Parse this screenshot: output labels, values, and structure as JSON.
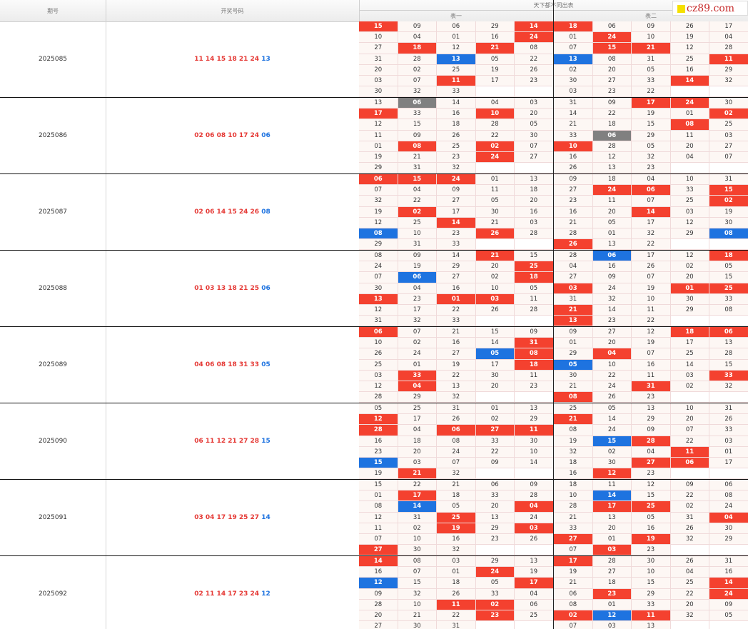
{
  "header": {
    "col_issue": "期号",
    "col_numbers": "开奖号码",
    "col_main": "天下都不同出表",
    "table1": "表一",
    "table2": "表二"
  },
  "logo": {
    "text": "cz89.com",
    "square_color": "#f5e000",
    "text_color": "#c62828"
  },
  "colors": {
    "red": "#f4412f",
    "blue": "#1e73e0",
    "gray": "#808080",
    "cell_bg": "#fdf7f4",
    "number_red": "#e53935",
    "number_blue": "#1e73e0"
  },
  "rows": [
    {
      "issue": "2025085",
      "red": "11 14 15 18 21 24",
      "blue": "13",
      "t1": [
        [
          "15r",
          "09",
          "06",
          "29",
          "14r"
        ],
        [
          "10",
          "04",
          "01",
          "16",
          "24r"
        ],
        [
          "27",
          "18r",
          "12",
          "21r",
          "08"
        ],
        [
          "31",
          "28",
          "13b",
          "05",
          "22"
        ],
        [
          "20",
          "02",
          "25",
          "19",
          "26"
        ],
        [
          "03",
          "07",
          "11r",
          "17",
          "23"
        ],
        [
          "30",
          "32",
          "33",
          "",
          ""
        ]
      ],
      "t2": [
        [
          "18r",
          "06",
          "09",
          "26",
          "17"
        ],
        [
          "01",
          "24r",
          "10",
          "19",
          "04"
        ],
        [
          "07",
          "15r",
          "21r",
          "12",
          "28"
        ],
        [
          "13b",
          "08",
          "31",
          "25",
          "11r"
        ],
        [
          "02",
          "20",
          "05",
          "16",
          "29"
        ],
        [
          "30",
          "27",
          "33",
          "14r",
          "32"
        ],
        [
          "03",
          "23",
          "22",
          "",
          ""
        ]
      ]
    },
    {
      "issue": "2025086",
      "red": "02 06 08 10 17 24",
      "blue": "06",
      "t1": [
        [
          "13",
          "06g",
          "14",
          "04",
          "03"
        ],
        [
          "17r",
          "33",
          "16",
          "10r",
          "20"
        ],
        [
          "12",
          "15",
          "18",
          "28",
          "05"
        ],
        [
          "11",
          "09",
          "26",
          "22",
          "30"
        ],
        [
          "01",
          "08r",
          "25",
          "02r",
          "07"
        ],
        [
          "19",
          "21",
          "23",
          "24r",
          "27"
        ],
        [
          "29",
          "31",
          "32",
          "",
          ""
        ]
      ],
      "t2": [
        [
          "31",
          "09",
          "17r",
          "24r",
          "30"
        ],
        [
          "14",
          "22",
          "19",
          "01",
          "02r"
        ],
        [
          "21",
          "18",
          "15",
          "08r",
          "25"
        ],
        [
          "33",
          "06g",
          "29",
          "11",
          "03"
        ],
        [
          "10r",
          "28",
          "05",
          "20",
          "27"
        ],
        [
          "16",
          "12",
          "32",
          "04",
          "07"
        ],
        [
          "26",
          "13",
          "23",
          "",
          ""
        ]
      ]
    },
    {
      "issue": "2025087",
      "red": "02 06 14 15 24 26",
      "blue": "08",
      "t1": [
        [
          "06r",
          "15r",
          "24r",
          "01",
          "13"
        ],
        [
          "07",
          "04",
          "09",
          "11",
          "18"
        ],
        [
          "32",
          "22",
          "27",
          "05",
          "20"
        ],
        [
          "19",
          "02r",
          "17",
          "30",
          "16"
        ],
        [
          "12",
          "25",
          "14r",
          "21",
          "03"
        ],
        [
          "08b",
          "10",
          "23",
          "26r",
          "28"
        ],
        [
          "29",
          "31",
          "33",
          "",
          ""
        ]
      ],
      "t2": [
        [
          "09",
          "18",
          "04",
          "10",
          "31"
        ],
        [
          "27",
          "24r",
          "06r",
          "33",
          "15r"
        ],
        [
          "23",
          "11",
          "07",
          "25",
          "02r"
        ],
        [
          "16",
          "20",
          "14r",
          "03",
          "19"
        ],
        [
          "21",
          "05",
          "17",
          "12",
          "30"
        ],
        [
          "28",
          "01",
          "32",
          "29",
          "08b"
        ],
        [
          "26r",
          "13",
          "22",
          "",
          ""
        ]
      ]
    },
    {
      "issue": "2025088",
      "red": "01 03 13 18 21 25",
      "blue": "06",
      "t1": [
        [
          "08",
          "09",
          "14",
          "21r",
          "15"
        ],
        [
          "24",
          "19",
          "29",
          "20",
          "25r"
        ],
        [
          "07",
          "06b",
          "27",
          "02",
          "18r"
        ],
        [
          "30",
          "04",
          "16",
          "10",
          "05"
        ],
        [
          "13r",
          "23",
          "01r",
          "03r",
          "11"
        ],
        [
          "12",
          "17",
          "22",
          "26",
          "28"
        ],
        [
          "31",
          "32",
          "33",
          "",
          ""
        ]
      ],
      "t2": [
        [
          "28",
          "06b",
          "17",
          "12",
          "18r"
        ],
        [
          "04",
          "16",
          "26",
          "02",
          "05"
        ],
        [
          "27",
          "09",
          "07",
          "20",
          "15"
        ],
        [
          "03r",
          "24",
          "19",
          "01r",
          "25r"
        ],
        [
          "31",
          "32",
          "10",
          "30",
          "33"
        ],
        [
          "21r",
          "14",
          "11",
          "29",
          "08"
        ],
        [
          "13r",
          "23",
          "22",
          "",
          ""
        ]
      ]
    },
    {
      "issue": "2025089",
      "red": "04 06 08 18 31 33",
      "blue": "05",
      "t1": [
        [
          "06r",
          "07",
          "21",
          "15",
          "09"
        ],
        [
          "10",
          "02",
          "16",
          "14",
          "31r"
        ],
        [
          "26",
          "24",
          "27",
          "05b",
          "08r"
        ],
        [
          "25",
          "01",
          "19",
          "17",
          "18r"
        ],
        [
          "03",
          "33r",
          "22",
          "30",
          "11"
        ],
        [
          "12",
          "04r",
          "13",
          "20",
          "23"
        ],
        [
          "28",
          "29",
          "32",
          "",
          ""
        ]
      ],
      "t2": [
        [
          "09",
          "27",
          "12",
          "18r",
          "06r"
        ],
        [
          "01",
          "20",
          "19",
          "17",
          "13"
        ],
        [
          "29",
          "04r",
          "07",
          "25",
          "28"
        ],
        [
          "05b",
          "10",
          "16",
          "14",
          "15"
        ],
        [
          "30",
          "22",
          "11",
          "03",
          "33r"
        ],
        [
          "21",
          "24",
          "31r",
          "02",
          "32"
        ],
        [
          "08r",
          "26",
          "23",
          "",
          ""
        ]
      ]
    },
    {
      "issue": "2025090",
      "red": "06 11 12 21 27 28",
      "blue": "15",
      "t1": [
        [
          "05",
          "25",
          "31",
          "01",
          "13"
        ],
        [
          "12r",
          "17",
          "26",
          "02",
          "29"
        ],
        [
          "28r",
          "04",
          "06r",
          "27r",
          "11r"
        ],
        [
          "16",
          "18",
          "08",
          "33",
          "30"
        ],
        [
          "23",
          "20",
          "24",
          "22",
          "10"
        ],
        [
          "15b",
          "03",
          "07",
          "09",
          "14"
        ],
        [
          "19",
          "21r",
          "32",
          "",
          ""
        ]
      ],
      "t2": [
        [
          "25",
          "05",
          "13",
          "10",
          "31"
        ],
        [
          "21r",
          "14",
          "29",
          "20",
          "26"
        ],
        [
          "08",
          "24",
          "09",
          "07",
          "33"
        ],
        [
          "19",
          "15b",
          "28r",
          "22",
          "03"
        ],
        [
          "32",
          "02",
          "04",
          "11r",
          "01"
        ],
        [
          "18",
          "30",
          "27r",
          "06r",
          "17"
        ],
        [
          "16",
          "12r",
          "23",
          "",
          ""
        ]
      ]
    },
    {
      "issue": "2025091",
      "red": "03 04 17 19 25 27",
      "blue": "14",
      "t1": [
        [
          "15",
          "22",
          "21",
          "06",
          "09"
        ],
        [
          "01",
          "17r",
          "18",
          "33",
          "28"
        ],
        [
          "08",
          "14b",
          "05",
          "20",
          "04r"
        ],
        [
          "12",
          "31",
          "25r",
          "13",
          "24"
        ],
        [
          "11",
          "02",
          "19r",
          "29",
          "03r"
        ],
        [
          "07",
          "10",
          "16",
          "23",
          "26"
        ],
        [
          "27r",
          "30",
          "32",
          "",
          ""
        ]
      ],
      "t2": [
        [
          "18",
          "11",
          "12",
          "09",
          "06"
        ],
        [
          "10",
          "14b",
          "15",
          "22",
          "08"
        ],
        [
          "28",
          "17r",
          "25r",
          "02",
          "24"
        ],
        [
          "21",
          "13",
          "05",
          "31",
          "04r"
        ],
        [
          "33",
          "20",
          "16",
          "26",
          "30"
        ],
        [
          "27r",
          "01",
          "19r",
          "32",
          "29"
        ],
        [
          "07",
          "03r",
          "23",
          "",
          ""
        ]
      ]
    },
    {
      "issue": "2025092",
      "red": "02 11 14 17 23 24",
      "blue": "12",
      "t1": [
        [
          "14r",
          "08",
          "03",
          "29",
          "13"
        ],
        [
          "16",
          "07",
          "01",
          "24r",
          "19"
        ],
        [
          "12b",
          "15",
          "18",
          "05",
          "17r"
        ],
        [
          "09",
          "32",
          "26",
          "33",
          "04"
        ],
        [
          "28",
          "10",
          "11r",
          "02r",
          "06"
        ],
        [
          "20",
          "21",
          "22",
          "23r",
          "25"
        ],
        [
          "27",
          "30",
          "31",
          "",
          ""
        ]
      ],
      "t2": [
        [
          "17r",
          "28",
          "30",
          "26",
          "31"
        ],
        [
          "19",
          "27",
          "10",
          "04",
          "16"
        ],
        [
          "21",
          "18",
          "15",
          "25",
          "14r"
        ],
        [
          "06",
          "23r",
          "29",
          "22",
          "24r"
        ],
        [
          "08",
          "01",
          "33",
          "20",
          "09"
        ],
        [
          "02r",
          "12b",
          "11r",
          "32",
          "05"
        ],
        [
          "07",
          "03",
          "13",
          "",
          ""
        ]
      ]
    }
  ]
}
